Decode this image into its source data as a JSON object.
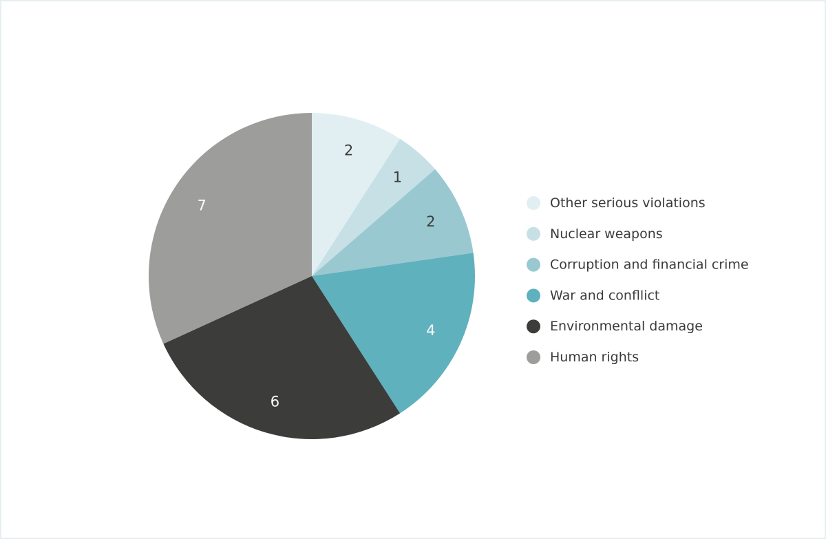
{
  "chart_data": {
    "type": "pie",
    "categories": [
      "Other serious violations",
      "Nuclear weapons",
      "Corruption and financial crime",
      "War and confllict",
      "Environmental damage",
      "Human rights"
    ],
    "values": [
      2,
      1,
      2,
      4,
      6,
      7
    ],
    "colors": [
      "#e2eff2",
      "#c6e0e6",
      "#9ac8d1",
      "#5fb1bd",
      "#3c3c3b",
      "#9d9d9c"
    ],
    "label_colors": [
      "#3c3c3b",
      "#3c3c3b",
      "#3c3c3b",
      "#ffffff",
      "#ffffff",
      "#ffffff"
    ],
    "start_angle_deg": 0,
    "direction": "clockwise",
    "legend_position": "right",
    "title": "",
    "xlabel": "",
    "ylabel": ""
  }
}
